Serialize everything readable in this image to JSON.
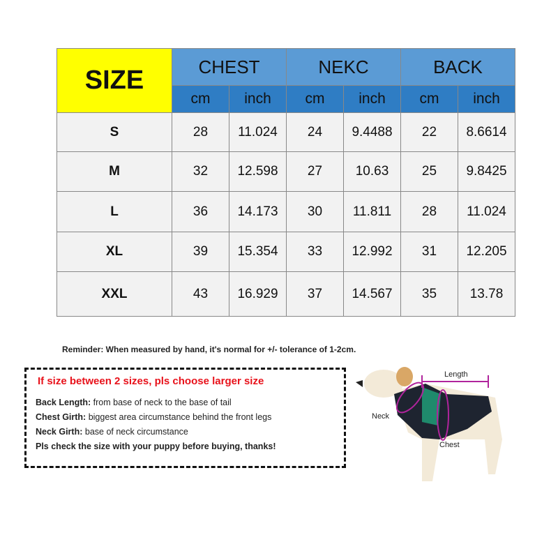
{
  "table": {
    "size_header": "SIZE",
    "groups": [
      "CHEST",
      "NEKC",
      "BACK"
    ],
    "units": [
      "cm",
      "inch",
      "cm",
      "inch",
      "cm",
      "inch"
    ],
    "rows": [
      {
        "size": "S",
        "values": [
          "28",
          "11.024",
          "24",
          "9.4488",
          "22",
          "8.6614"
        ]
      },
      {
        "size": "M",
        "values": [
          "32",
          "12.598",
          "27",
          "10.63",
          "25",
          "9.8425"
        ]
      },
      {
        "size": "L",
        "values": [
          "36",
          "14.173",
          "30",
          "11.811",
          "28",
          "11.024"
        ]
      },
      {
        "size": "XL",
        "values": [
          "39",
          "15.354",
          "33",
          "12.992",
          "31",
          "12.205"
        ]
      },
      {
        "size": "XXL",
        "values": [
          "43",
          "16.929",
          "37",
          "14.567",
          "35",
          "13.78"
        ]
      }
    ]
  },
  "reminder": "Reminder: When measured by hand, it's normal for +/- tolerance of 1-2cm.",
  "notes": {
    "warning": "If size between  2 sizes, pls choose larger size",
    "lines": [
      {
        "label": "Back Length:",
        "text": " from base of neck to the base of tail"
      },
      {
        "label": "Chest Girth:",
        "text": " biggest area circumstance behind the front legs"
      },
      {
        "label": "Neck Girth:",
        "text": " base of neck circumstance"
      },
      {
        "label": "Pls check the size with your puppy before buying, thanks!",
        "text": ""
      }
    ]
  },
  "diagram": {
    "length": "Length",
    "neck": "Neck",
    "chest": "Chest"
  },
  "colors": {
    "size_header": "#ffff00",
    "group_header": "#5b9bd5",
    "unit_header": "#2f7dc4",
    "cell": "#f2f2f2",
    "warning": "#e8121b",
    "measure_line": "#b0249c"
  }
}
